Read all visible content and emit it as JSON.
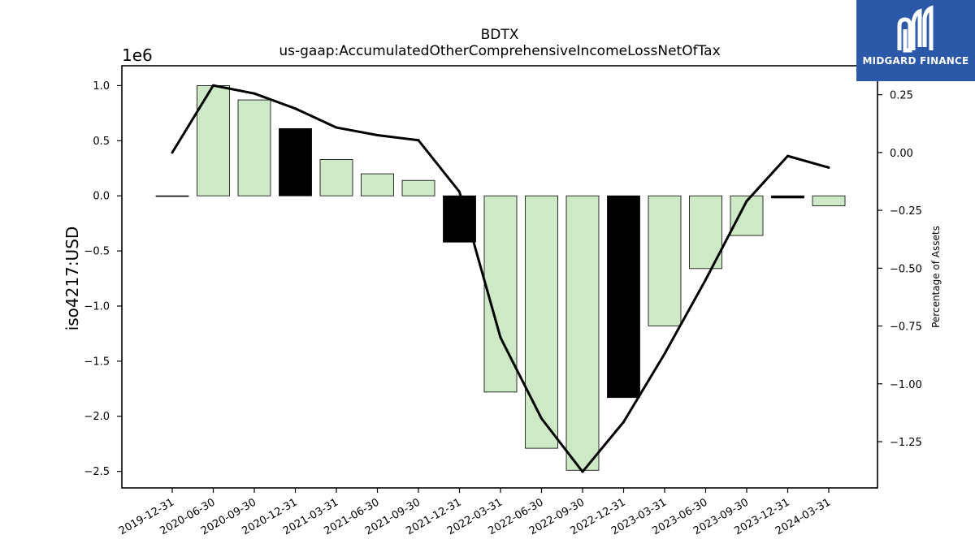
{
  "chart_data": {
    "type": "bar",
    "title": "BDTX",
    "subtitle": "us-gaap:AccumulatedOtherComprehensiveIncomeLossNetOfTax",
    "ylabel": "iso4217:USD",
    "y2label": "Percentage of Assets",
    "offset_text": "1e6",
    "categories": [
      "2019-12-31",
      "2020-06-30",
      "2020-09-30",
      "2020-12-31",
      "2021-03-31",
      "2021-06-30",
      "2021-09-30",
      "2021-12-31",
      "2022-03-31",
      "2022-06-30",
      "2022-09-30",
      "2022-12-31",
      "2023-03-31",
      "2023-06-30",
      "2023-09-30",
      "2023-12-31",
      "2024-03-31"
    ],
    "series": [
      {
        "type": "bar",
        "values": [
          0.0,
          1.0,
          0.87,
          0.61,
          0.33,
          0.2,
          0.14,
          -0.42,
          -1.78,
          -2.29,
          -2.49,
          -1.83,
          -1.18,
          -0.66,
          -0.36,
          -0.02,
          -0.09
        ],
        "highlight": [
          false,
          false,
          false,
          true,
          false,
          false,
          false,
          true,
          false,
          false,
          false,
          true,
          false,
          false,
          false,
          true,
          false
        ]
      },
      {
        "type": "line",
        "axis": "right",
        "values": [
          0.0,
          0.29,
          0.255,
          0.19,
          0.108,
          0.075,
          0.053,
          -0.17,
          -0.8,
          -1.15,
          -1.38,
          -1.165,
          -0.87,
          -0.55,
          -0.21,
          -0.015,
          -0.065
        ]
      }
    ],
    "yticks": [
      "1.0",
      "0.5",
      "0.0",
      "−0.5",
      "−1.0",
      "−1.5",
      "−2.0",
      "−2.5"
    ],
    "y2ticks": [
      "0.25",
      "0.00",
      "−0.25",
      "−0.50",
      "−0.75",
      "−1.00",
      "−1.25"
    ],
    "ylim": [
      -2.65,
      1.18
    ],
    "y2lim": [
      -1.45,
      0.375
    ],
    "grid": false,
    "colors": {
      "bar": "#cde9c5",
      "highlight": "#000000",
      "line": "#000000",
      "edge": "#000000"
    }
  },
  "logo": {
    "text": "MIDGARD FINANCE",
    "background": "#2b58a8"
  }
}
